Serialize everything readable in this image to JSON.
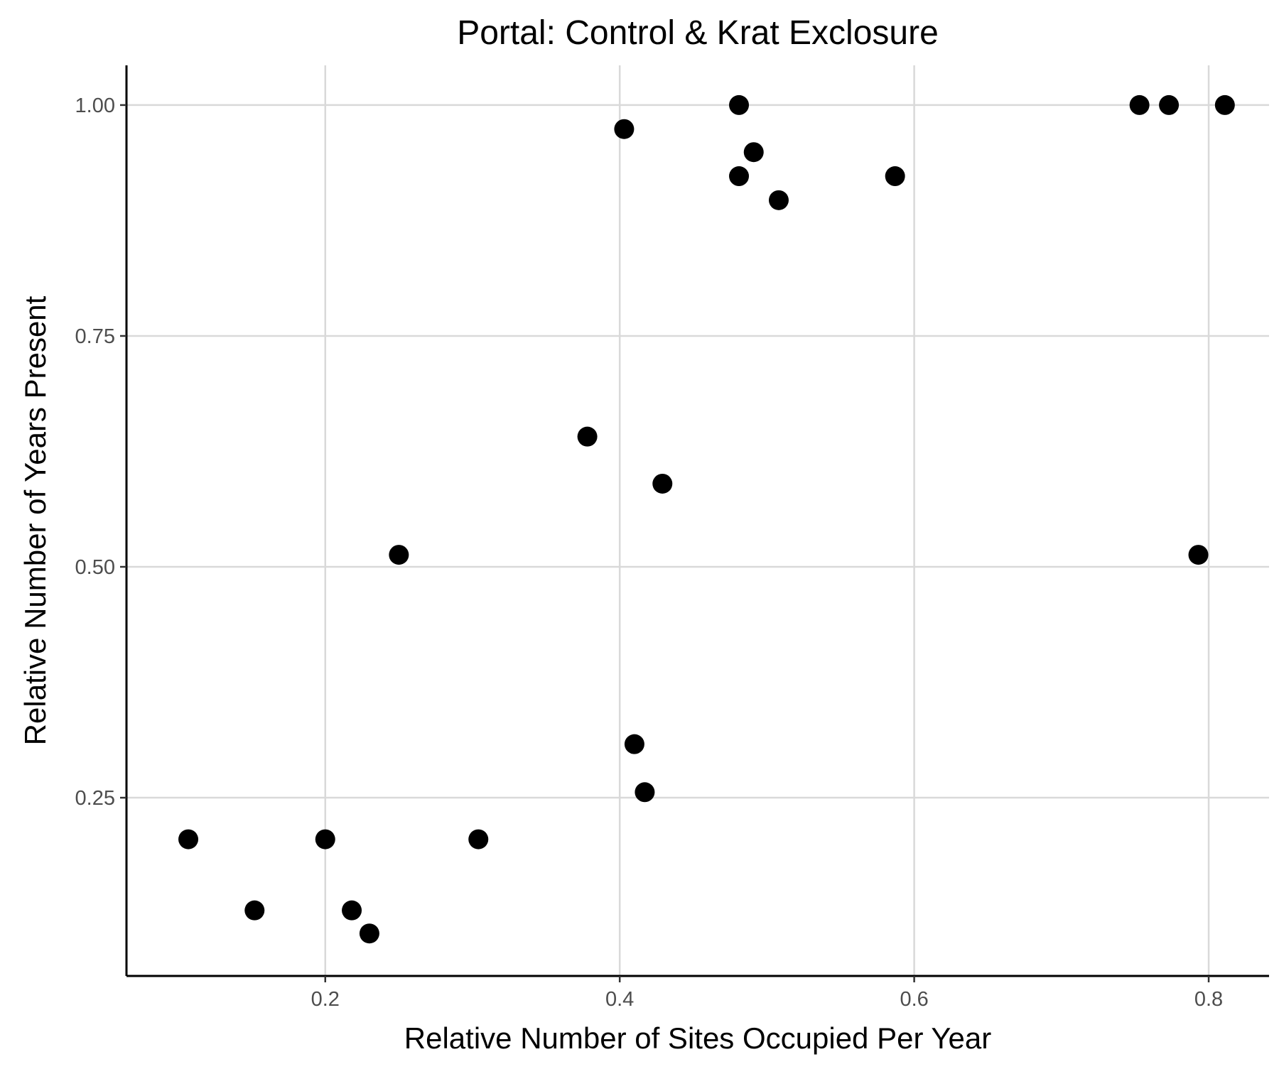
{
  "chart_data": {
    "type": "scatter",
    "title": "Portal: Control & Krat Exclosure",
    "xlabel": "Relative Number of Sites Occupied Per Year",
    "ylabel": "Relative Number of Years Present",
    "xlim": [
      0.065,
      0.841
    ],
    "ylim": [
      0.057,
      1.043
    ],
    "x_ticks": [
      0.2,
      0.4,
      0.6,
      0.8
    ],
    "x_tick_labels": [
      "0.2",
      "0.4",
      "0.6",
      "0.8"
    ],
    "y_ticks": [
      0.25,
      0.5,
      0.75,
      1.0
    ],
    "y_tick_labels": [
      "0.25",
      "0.50",
      "0.75",
      "1.00"
    ],
    "grid": true,
    "point_color": "#000000",
    "grid_color": "#d9d9d9",
    "points": [
      {
        "x": 0.107,
        "y": 0.205
      },
      {
        "x": 0.152,
        "y": 0.128
      },
      {
        "x": 0.2,
        "y": 0.205
      },
      {
        "x": 0.218,
        "y": 0.128
      },
      {
        "x": 0.23,
        "y": 0.103
      },
      {
        "x": 0.25,
        "y": 0.513
      },
      {
        "x": 0.304,
        "y": 0.205
      },
      {
        "x": 0.378,
        "y": 0.641
      },
      {
        "x": 0.403,
        "y": 0.974
      },
      {
        "x": 0.41,
        "y": 0.308
      },
      {
        "x": 0.417,
        "y": 0.256
      },
      {
        "x": 0.429,
        "y": 0.59
      },
      {
        "x": 0.481,
        "y": 1.0
      },
      {
        "x": 0.481,
        "y": 0.923
      },
      {
        "x": 0.491,
        "y": 0.949
      },
      {
        "x": 0.508,
        "y": 0.897
      },
      {
        "x": 0.587,
        "y": 0.923
      },
      {
        "x": 0.753,
        "y": 1.0
      },
      {
        "x": 0.773,
        "y": 1.0
      },
      {
        "x": 0.793,
        "y": 0.513
      },
      {
        "x": 0.811,
        "y": 1.0
      }
    ]
  }
}
